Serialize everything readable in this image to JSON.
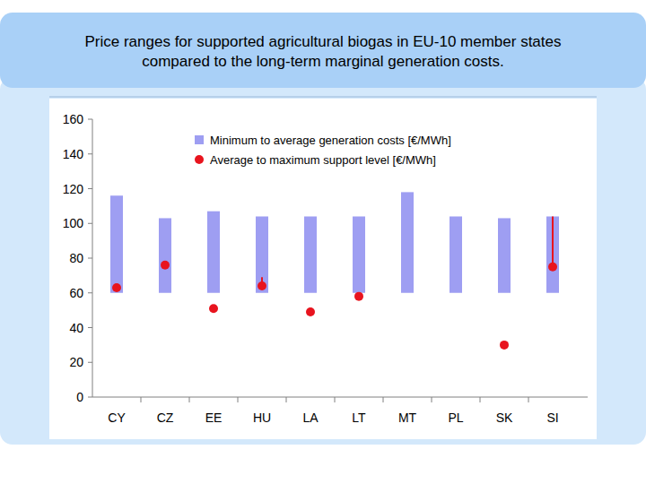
{
  "chart_data": {
    "type": "bar",
    "title": "Price ranges for supported agricultural biogas in EU-10 member states compared to the long-term marginal generation costs.",
    "categories": [
      "CY",
      "CZ",
      "EE",
      "HU",
      "LA",
      "LT",
      "MT",
      "PL",
      "SK",
      "SI"
    ],
    "series": [
      {
        "name": "Minimum to average generation costs [€/MWh]",
        "type": "bar",
        "color": "#9e9ef2",
        "low": [
          60,
          60,
          60,
          60,
          60,
          60,
          60,
          60,
          60,
          60
        ],
        "values": [
          116,
          103,
          107,
          104,
          104,
          104,
          118,
          104,
          103,
          104
        ]
      },
      {
        "name": "Average to maximum support level [€/MWh]",
        "type": "scatter",
        "color": "#e8141e",
        "marker": "circle",
        "values": [
          63,
          76,
          51,
          64,
          49,
          58,
          null,
          null,
          30,
          75
        ],
        "high": [
          null,
          null,
          null,
          69,
          null,
          null,
          null,
          null,
          null,
          104
        ]
      }
    ],
    "ylim": [
      0,
      160
    ],
    "yticks": [
      0,
      20,
      40,
      60,
      80,
      100,
      120,
      140,
      160
    ],
    "grid": false,
    "legend": "top"
  }
}
